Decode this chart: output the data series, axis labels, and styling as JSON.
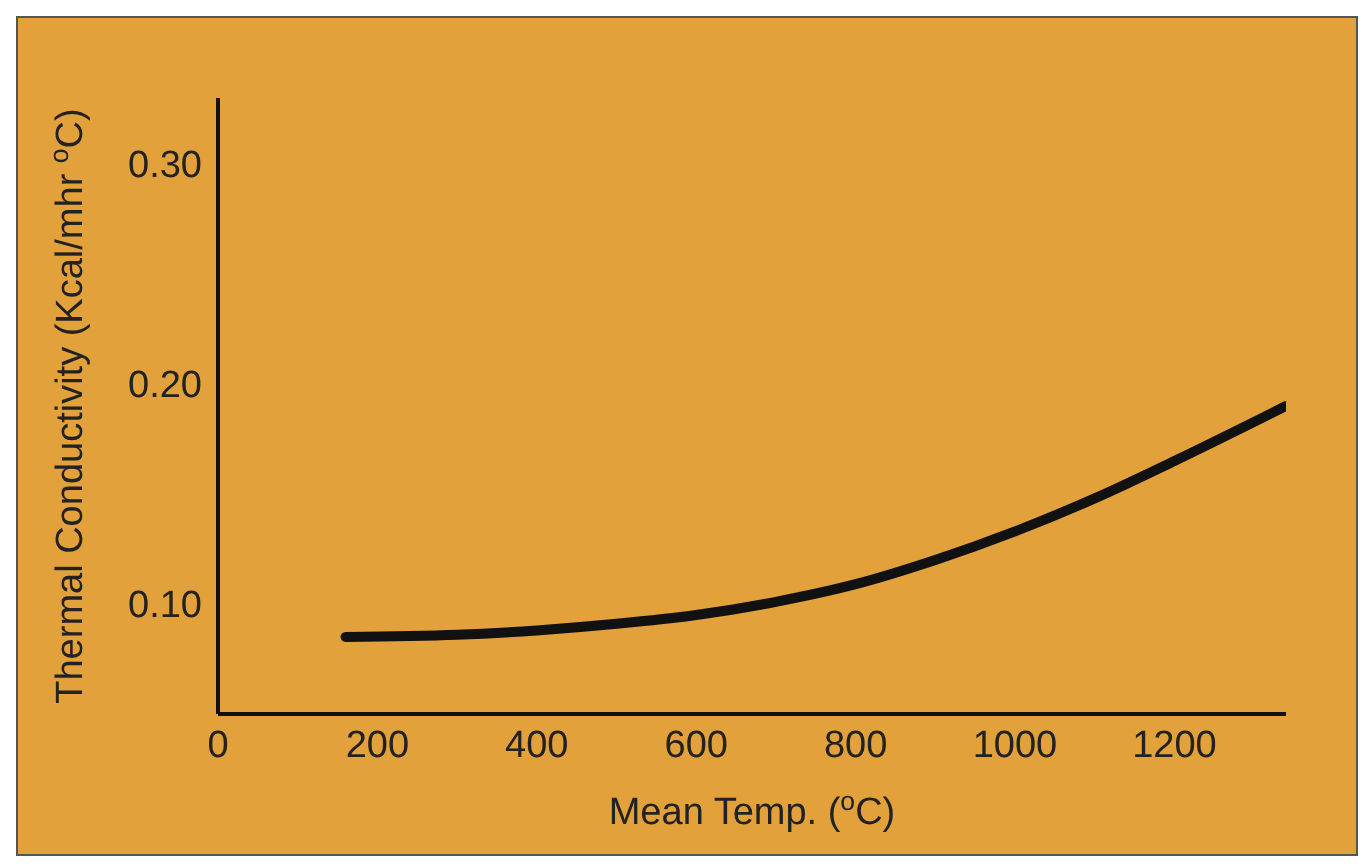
{
  "chart_data": {
    "type": "line",
    "xlabel": "Mean Temp. ($^{o}$C)",
    "ylabel": "Thermal Conductivity (Kcal/mhr $^{o}$C)",
    "x": [
      160,
      300,
      400,
      500,
      600,
      700,
      800,
      900,
      1000,
      1100,
      1200,
      1340
    ],
    "series": [
      {
        "color": "#111111",
        "values": [
          0.085,
          0.086,
          0.088,
          0.091,
          0.095,
          0.101,
          0.109,
          0.12,
          0.133,
          0.148,
          0.165,
          0.19
        ]
      }
    ],
    "xlim": [
      0,
      1340
    ],
    "xticks": [
      0,
      200,
      400,
      600,
      800,
      1000,
      1200
    ],
    "ylim": [
      0.05,
      0.33
    ],
    "yticks": [
      {
        "value": 0.1,
        "label": "0.10"
      },
      {
        "value": 0.2,
        "label": "0.20"
      },
      {
        "value": 0.3,
        "label": "0.30"
      }
    ],
    "grid": false,
    "legend": false,
    "marker": "none",
    "line_style": "solid"
  }
}
